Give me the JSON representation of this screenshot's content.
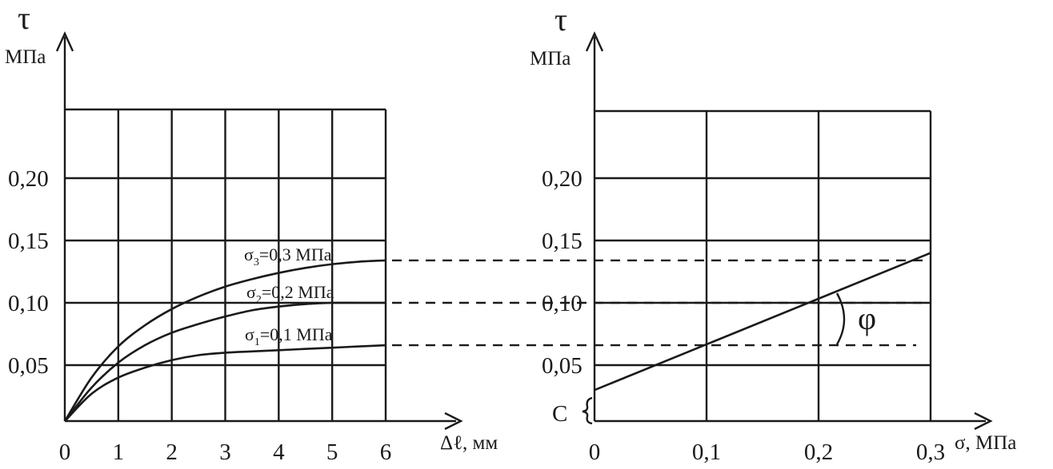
{
  "chart_data": [
    {
      "type": "line",
      "title": "",
      "ylabel": "τ",
      "ylabel_unit": "МПа",
      "xlabel": "Δℓ, мм",
      "x_ticks": [
        "0",
        "1",
        "2",
        "3",
        "4",
        "5",
        "6"
      ],
      "y_ticks": [
        "0,05",
        "0,10",
        "0,15",
        "0,20"
      ],
      "xlim": [
        0,
        6
      ],
      "ylim": [
        0,
        0.25
      ],
      "grid": true,
      "series": [
        {
          "name": "σ3=0,3 МПа",
          "x": [
            0,
            0.5,
            1,
            1.5,
            2,
            2.5,
            3,
            3.5,
            4,
            4.5,
            5,
            5.5,
            6
          ],
          "y": [
            0.005,
            0.04,
            0.065,
            0.082,
            0.095,
            0.105,
            0.113,
            0.119,
            0.124,
            0.128,
            0.131,
            0.133,
            0.134
          ]
        },
        {
          "name": "σ2=0,2 МПа",
          "x": [
            0,
            0.5,
            1,
            1.5,
            2,
            2.5,
            3,
            3.5,
            4,
            4.5,
            5,
            5.5,
            6
          ],
          "y": [
            0.005,
            0.032,
            0.052,
            0.066,
            0.076,
            0.083,
            0.089,
            0.094,
            0.097,
            0.099,
            0.1,
            0.1,
            0.1
          ]
        },
        {
          "name": "σ1=0,1 МПа",
          "x": [
            0,
            0.5,
            1,
            1.5,
            2,
            2.5,
            3,
            3.5,
            4,
            4.5,
            5,
            5.5,
            6
          ],
          "y": [
            0.005,
            0.027,
            0.04,
            0.048,
            0.054,
            0.058,
            0.06,
            0.061,
            0.062,
            0.063,
            0.064,
            0.065,
            0.066
          ]
        }
      ],
      "series_labels": [
        {
          "prefix": "σ",
          "sub": "3",
          "rest": "=0,3 МПа"
        },
        {
          "prefix": "σ",
          "sub": "2",
          "rest": "=0,2 МПа"
        },
        {
          "prefix": "σ",
          "sub": "1",
          "rest": "=0,1 МПа"
        }
      ]
    },
    {
      "type": "line",
      "title": "",
      "ylabel": "τ",
      "ylabel_unit": "МПа",
      "xlabel": "σ, МПа",
      "x_ticks": [
        "0",
        "0,1",
        "0,2",
        "0,3"
      ],
      "y_ticks": [
        "0,05",
        "0,10",
        "0,15",
        "0,20"
      ],
      "xlim": [
        0,
        0.3
      ],
      "ylim": [
        0,
        0.25
      ],
      "grid": true,
      "series": [
        {
          "name": "",
          "x": [
            0,
            0.3
          ],
          "y": [
            0.03,
            0.14
          ]
        }
      ],
      "reference_levels": [
        0.134,
        0.1,
        0.066
      ],
      "annotations": {
        "cohesion": "C",
        "friction_angle": "φ"
      }
    }
  ]
}
